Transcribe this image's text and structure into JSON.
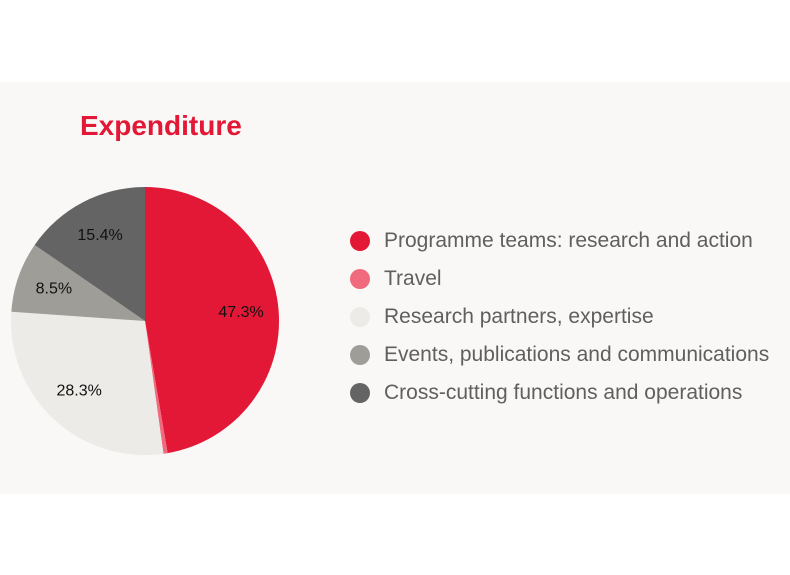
{
  "colors": {
    "title": "#e31837",
    "label_text": "#111111"
  },
  "chart_data": {
    "type": "pie",
    "title": "Expenditure",
    "start_angle_deg": 0,
    "direction": "clockwise",
    "legend_position": "right",
    "slices": [
      {
        "name": "Programme teams: research and action",
        "value": 47.3,
        "label": "47.3%",
        "color": "#e31837"
      },
      {
        "name": "Travel",
        "value": 0.5,
        "label": "",
        "color": "#ef6a7c"
      },
      {
        "name": "Research partners, expertise",
        "value": 28.3,
        "label": "28.3%",
        "color": "#ecebe7"
      },
      {
        "name": "Events, publications and communications",
        "value": 8.5,
        "label": "8.5%",
        "color": "#9f9d97"
      },
      {
        "name": "Cross-cutting functions and operations",
        "value": 15.4,
        "label": "15.4%",
        "color": "#646464"
      }
    ]
  }
}
